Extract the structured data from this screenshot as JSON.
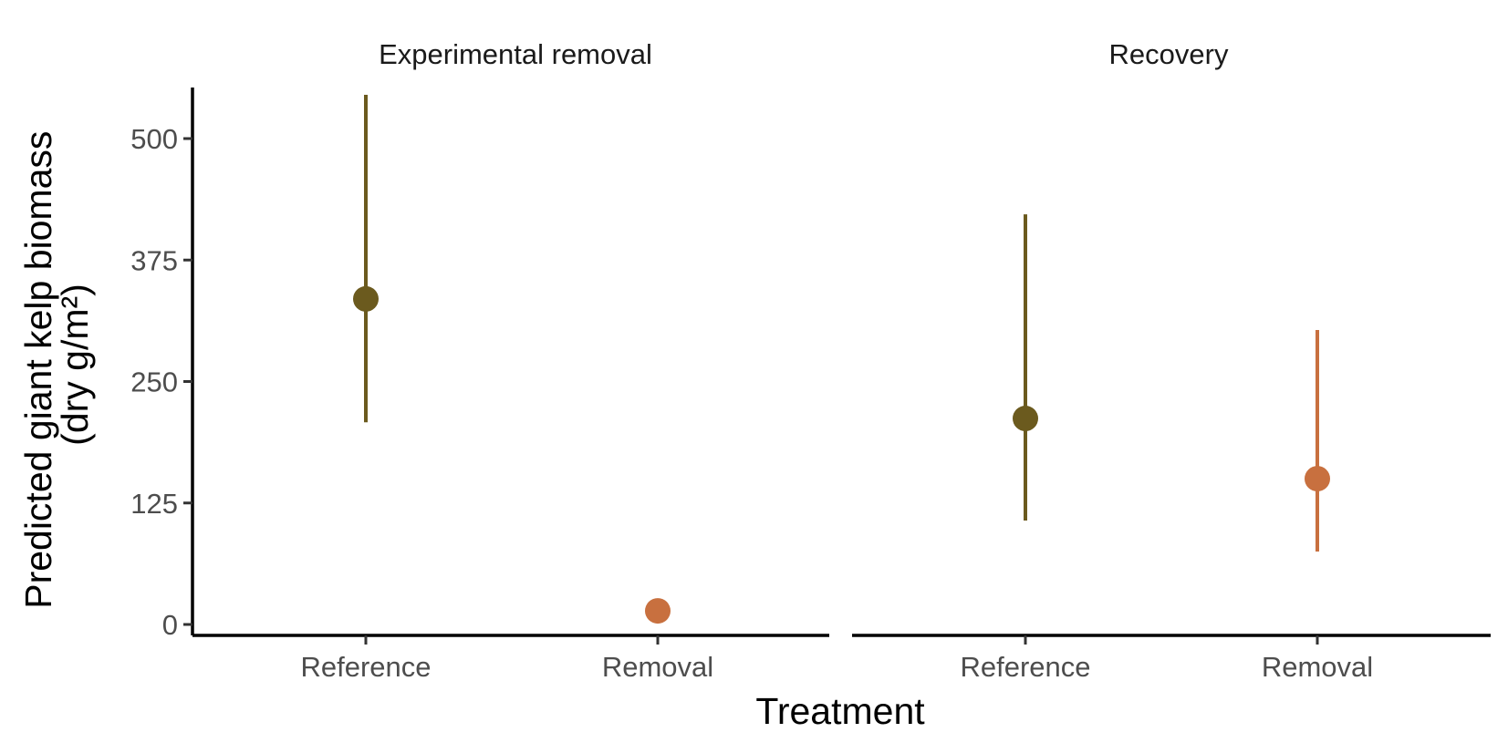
{
  "chart_data": {
    "type": "scatter",
    "subtype": "pointrange",
    "xlabel": "Treatment",
    "ylabel_lines": [
      "Predicted giant kelp biomass",
      "(dry g/m²)"
    ],
    "ylim": [
      0,
      550
    ],
    "yticks": [
      0,
      125,
      250,
      375,
      500
    ],
    "categories": [
      "Reference",
      "Removal"
    ],
    "colors": {
      "Reference": "#6b5a1e",
      "Removal": "#c8703f"
    },
    "grid": false,
    "legend": "none",
    "panels": [
      {
        "title": "Experimental removal",
        "points": [
          {
            "category": "Reference",
            "estimate": 335,
            "lower": 208,
            "upper": 545
          },
          {
            "category": "Removal",
            "estimate": 14,
            "lower": 14,
            "upper": 14
          }
        ]
      },
      {
        "title": "Recovery",
        "points": [
          {
            "category": "Reference",
            "estimate": 212,
            "lower": 107,
            "upper": 422
          },
          {
            "category": "Removal",
            "estimate": 150,
            "lower": 75,
            "upper": 303
          }
        ]
      }
    ]
  }
}
